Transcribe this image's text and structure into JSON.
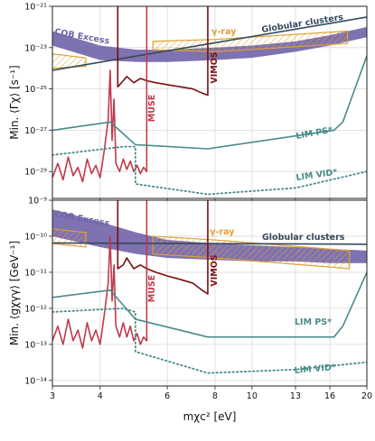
{
  "chart_data": [
    {
      "type": "line",
      "xscale": "log",
      "yscale": "log",
      "grid": true,
      "xtick_labels": false,
      "ylabel": "Min. ⟨Γχ⟩ [s⁻¹]",
      "xlim": [
        3,
        20
      ],
      "xticks": [
        3,
        4,
        6,
        8,
        10,
        13,
        16,
        20
      ],
      "ylim": [
        5e-31,
        1e-21
      ],
      "yticks": [
        {
          "value": 1e-29,
          "label": "10⁻²⁹"
        },
        {
          "value": 1e-27,
          "label": "10⁻²⁷"
        },
        {
          "value": 1e-25,
          "label": "10⁻²⁵"
        },
        {
          "value": 1e-23,
          "label": "10⁻²³"
        },
        {
          "value": 1e-21,
          "label": "10⁻²¹"
        }
      ],
      "series": [
        {
          "name": "COB Excess",
          "color": "#7163a8",
          "x": [
            3,
            4,
            5,
            6,
            8,
            10,
            13,
            16,
            20
          ],
          "values": [
            6.3e-23,
            1.26e-23,
            7.9e-24,
            7.9e-24,
            1e-23,
            1.26e-23,
            2e-23,
            4e-23,
            1e-22
          ],
          "lower": [
            1.26e-23,
            2.5e-24,
            2e-24,
            2e-24,
            2.5e-24,
            3.2e-24,
            6.3e-24,
            1.26e-23,
            3.2e-23
          ]
        },
        {
          "name": "γ-ray",
          "color": "#e0a030",
          "style": "hatch",
          "regions": [
            {
              "x": [
                3,
                3.67,
                3.67,
                3
              ],
              "values": [
                5e-24,
                3.2e-24,
                1.26e-24,
                1e-24
              ]
            },
            {
              "x": [
                5.5,
                8,
                17.8,
                17.8,
                8,
                5.5
              ],
              "values": [
                2e-23,
                2.5e-23,
                6.3e-23,
                1.6e-23,
                6.3e-24,
                7.9e-24
              ]
            }
          ]
        },
        {
          "name": "Globular clusters",
          "color": "#34495e",
          "x": [
            3,
            20
          ],
          "values": [
            8e-25,
            3e-22
          ]
        },
        {
          "name": "VIMOS",
          "color": "#7a0f0f",
          "x": [
            4.45,
            4.45,
            4.6,
            4.7,
            4.9,
            5.1,
            5.3,
            5.6,
            6,
            6.5,
            7,
            7.4,
            7.66,
            7.66
          ],
          "values": [
            1e-21,
            1.26e-25,
            2.5e-25,
            4e-25,
            2e-25,
            3.2e-25,
            2.5e-25,
            2e-25,
            1.6e-25,
            1.26e-25,
            1e-25,
            6.3e-26,
            5e-26,
            1e-21
          ]
        },
        {
          "name": "MUSE",
          "color": "#c0394b",
          "x": [
            3,
            3.1,
            3.2,
            3.3,
            3.4,
            3.5,
            3.6,
            3.7,
            3.8,
            3.9,
            4.0,
            4.1,
            4.2,
            4.25,
            4.3,
            4.35,
            4.4,
            4.5,
            4.6,
            4.7,
            4.8,
            4.9,
            5.0,
            5.1,
            5.2,
            5.3,
            5.3
          ],
          "values": [
            5e-30,
            2.5e-29,
            4e-30,
            5e-29,
            6.3e-30,
            1.6e-29,
            3.2e-30,
            4e-29,
            7.9e-30,
            2e-29,
            5e-30,
            1e-28,
            3.2e-27,
            7.9e-25,
            3.2e-28,
            3.2e-26,
            2.5e-29,
            1e-29,
            4e-29,
            1.26e-29,
            3.2e-29,
            1e-29,
            2e-29,
            7.9e-30,
            1.6e-29,
            1e-29,
            1e-21
          ]
        },
        {
          "name": "LIM PS*",
          "color": "#4a8a8a",
          "x": [
            3,
            4.25,
            4.95,
            7.66,
            16.4,
            17.3,
            20
          ],
          "values": [
            1e-27,
            2.5e-27,
            2e-28,
            1.26e-28,
            1e-27,
            2.5e-27,
            4e-24
          ]
        },
        {
          "name": "LIM VID*",
          "color": "#4a8a8a",
          "style": "dotted",
          "x": [
            3,
            4.6,
            4.95,
            4.95,
            7.66,
            13,
            20
          ],
          "values": [
            6.3e-29,
            1.6e-28,
            1.6e-28,
            2.5e-30,
            7.9e-31,
            1.6e-30,
            1e-29
          ]
        }
      ]
    },
    {
      "type": "line",
      "xscale": "log",
      "yscale": "log",
      "grid": true,
      "xlabel": "mχc² [eV]",
      "ylabel": "Min. ⟨gχγγ⟩ [GeV⁻¹]",
      "xlim": [
        3,
        20
      ],
      "xticks": [
        3,
        4,
        6,
        8,
        10,
        13,
        16,
        20
      ],
      "ylim": [
        7e-15,
        1e-09
      ],
      "yticks": [
        {
          "value": 1e-14,
          "label": "10⁻¹⁴"
        },
        {
          "value": 1e-13,
          "label": "10⁻¹³"
        },
        {
          "value": 1e-12,
          "label": "10⁻¹²"
        },
        {
          "value": 1e-11,
          "label": "10⁻¹¹"
        },
        {
          "value": 1e-10,
          "label": "10⁻¹⁰"
        },
        {
          "value": 1e-09,
          "label": "10⁻⁹"
        }
      ],
      "series": [
        {
          "name": "COB Excess",
          "color": "#7163a8",
          "x": [
            3,
            4,
            5,
            6,
            8,
            10,
            13,
            16,
            20
          ],
          "values": [
            5.6e-10,
            2.5e-10,
            1.26e-10,
            7.9e-11,
            6.3e-11,
            5.6e-11,
            5e-11,
            4.5e-11,
            4e-11
          ],
          "lower": [
            1e-10,
            5e-11,
            3.2e-11,
            2.5e-11,
            2.2e-11,
            2e-11,
            2e-11,
            1.8e-11,
            1.8e-11
          ]
        },
        {
          "name": "γ-ray",
          "color": "#e0a030",
          "style": "hatch",
          "regions": [
            {
              "x": [
                3,
                3.67,
                3.67,
                3
              ],
              "values": [
                1.6e-10,
                1.26e-10,
                5e-11,
                6.3e-11
              ]
            },
            {
              "x": [
                5.5,
                8,
                18,
                18,
                8,
                5.5
              ],
              "values": [
                1e-10,
                7.9e-11,
                4e-11,
                1.26e-11,
                2.5e-11,
                3.2e-11
              ]
            }
          ]
        },
        {
          "name": "Globular clusters",
          "color": "#34495e",
          "x": [
            3,
            20
          ],
          "values": [
            6.5e-11,
            6e-11
          ]
        },
        {
          "name": "VIMOS",
          "color": "#7a0f0f",
          "x": [
            4.45,
            4.45,
            4.6,
            4.7,
            4.9,
            5.1,
            5.3,
            5.6,
            6,
            6.5,
            7,
            7.4,
            7.66,
            7.66
          ],
          "values": [
            1e-09,
            1.26e-11,
            1.6e-11,
            2.5e-11,
            1.26e-11,
            1.6e-11,
            1.26e-11,
            1e-11,
            7.9e-12,
            6.3e-12,
            5e-12,
            3.2e-12,
            2.5e-12,
            1e-09
          ]
        },
        {
          "name": "MUSE",
          "color": "#c0394b",
          "x": [
            3,
            3.1,
            3.2,
            3.3,
            3.4,
            3.5,
            3.6,
            3.7,
            3.8,
            3.9,
            4.0,
            4.1,
            4.2,
            4.25,
            4.3,
            4.35,
            4.4,
            4.5,
            4.6,
            4.7,
            4.8,
            4.9,
            5.0,
            5.1,
            5.2,
            5.3,
            5.3
          ],
          "values": [
            1.26e-13,
            3.2e-13,
            1e-13,
            5e-13,
            1.26e-13,
            2.5e-13,
            7.9e-14,
            4e-13,
            1.26e-13,
            2.5e-13,
            1e-13,
            6.3e-13,
            5e-12,
            1e-10,
            1.6e-12,
            1.6e-11,
            3.2e-13,
            1.6e-13,
            4e-13,
            1.6e-13,
            3.2e-13,
            1.26e-13,
            2e-13,
            1e-13,
            1.6e-13,
            1.26e-13,
            1e-09
          ]
        },
        {
          "name": "LIM PS*",
          "color": "#4a8a8a",
          "x": [
            3,
            4.25,
            4.95,
            7.66,
            16.4,
            17.3,
            20
          ],
          "values": [
            2e-12,
            3.2e-12,
            5e-13,
            1.6e-13,
            1.6e-13,
            3.2e-13,
            1e-11
          ]
        },
        {
          "name": "LIM VID*",
          "color": "#4a8a8a",
          "style": "dotted",
          "x": [
            3,
            4.6,
            4.95,
            4.95,
            7.66,
            13,
            20
          ],
          "values": [
            7.9e-13,
            1e-12,
            7.9e-13,
            6.3e-14,
            1.6e-14,
            2e-14,
            3.2e-14
          ]
        }
      ]
    }
  ]
}
